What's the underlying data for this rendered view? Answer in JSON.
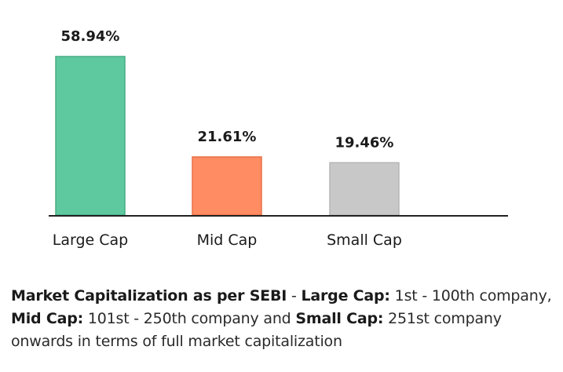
{
  "chart_data": {
    "type": "bar",
    "categories": [
      "Large Cap",
      "Mid Cap",
      "Small Cap"
    ],
    "values": [
      58.94,
      21.61,
      19.46
    ],
    "value_labels": [
      "58.94%",
      "21.61%",
      "19.46%"
    ],
    "colors": [
      "#5ec89f",
      "#ff8c62",
      "#c8c8c8"
    ],
    "border_colors": [
      "#46ad83",
      "#e87248",
      "#b5b5b5"
    ],
    "ylim": [
      0,
      58.94
    ],
    "grid": false,
    "legend": "none"
  },
  "caption": {
    "part1": "Market Capitalization as per SEBI",
    "part2": " - ",
    "part3": "Large Cap:",
    "part4": " 1st - 100th company, ",
    "part5": "Mid Cap:",
    "part6": " 101st - 250th company and ",
    "part7": "Small Cap:",
    "part8": " 251st company onwards in terms of full market capitalization"
  }
}
